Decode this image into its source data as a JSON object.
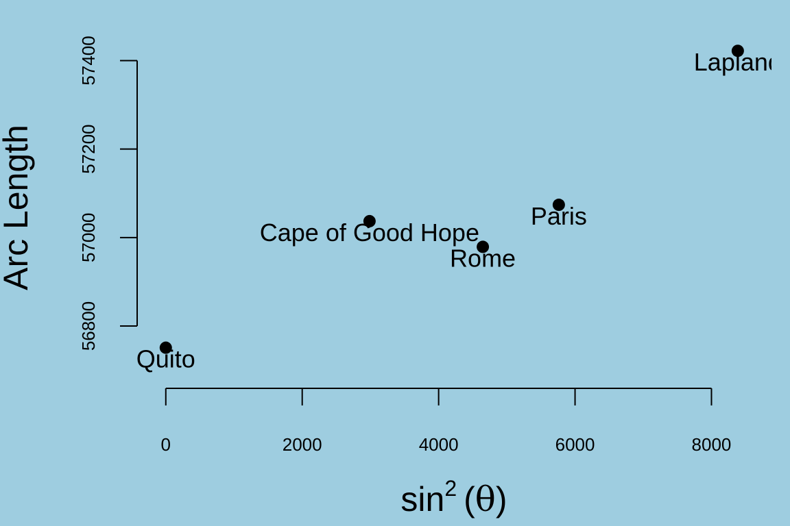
{
  "chart_data": {
    "type": "scatter",
    "title": "",
    "xlabel": {
      "prefix": "sin",
      "superscript": "2",
      "open_paren": "(",
      "symbol": "θ",
      "close_paren": ")"
    },
    "ylabel": "Arc Length",
    "xlim": [
      -420,
      8880
    ],
    "ylim": [
      56670,
      57475
    ],
    "x_ticks": [
      0,
      2000,
      4000,
      6000,
      8000
    ],
    "x_tick_labels": [
      "0",
      "2000",
      "4000",
      "6000",
      "8000"
    ],
    "y_ticks": [
      56800,
      57000,
      57200,
      57400
    ],
    "y_tick_labels": [
      "56800",
      "57000",
      "57200",
      "57400"
    ],
    "grid": false,
    "legend": "none",
    "colors": {
      "background": "#9ecde0",
      "points": "#000000",
      "axes": "#000000"
    },
    "points": [
      {
        "label": "Quito",
        "x": 0,
        "y": 56751
      },
      {
        "label": "Cape of Good Hope",
        "x": 2987,
        "y": 57037
      },
      {
        "label": "Rome",
        "x": 4648,
        "y": 56979
      },
      {
        "label": "Paris",
        "x": 5762,
        "y": 57074
      },
      {
        "label": "Lapland",
        "x": 8386,
        "y": 57422
      }
    ]
  }
}
